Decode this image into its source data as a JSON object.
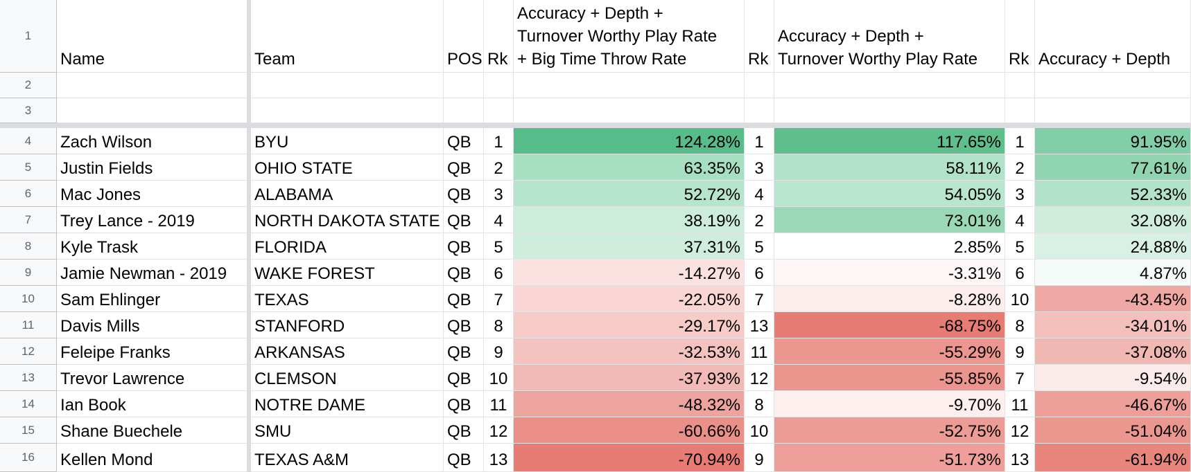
{
  "row_numbers": [
    "1",
    "2",
    "3",
    "4",
    "5",
    "6",
    "7",
    "8",
    "9",
    "10",
    "11",
    "12",
    "13",
    "14",
    "15",
    "16"
  ],
  "headers": {
    "name": "Name",
    "team": "Team",
    "pos": "POS",
    "rk1": "Rk",
    "score1": [
      "Accuracy + Depth +",
      "Turnover Worthy Play Rate",
      "+ Big Time Throw Rate"
    ],
    "rk2": "Rk",
    "score2": [
      "Accuracy + Depth +",
      "Turnover Worthy Play Rate"
    ],
    "rk3": "Rk",
    "score3": [
      "Accuracy + Depth"
    ]
  },
  "rows": [
    {
      "name": "Zach Wilson",
      "team": "BYU",
      "pos": "QB",
      "rk1": "1",
      "score1": "124.28%",
      "rk2": "1",
      "score2": "117.65%",
      "rk3": "1",
      "score3": "91.95%",
      "c1": "#57bb8a",
      "c2": "#5ebf8d",
      "c3": "#82cea8"
    },
    {
      "name": "Justin Fields",
      "team": "OHIO STATE",
      "pos": "QB",
      "rk1": "2",
      "score1": "63.35%",
      "rk2": "3",
      "score2": "58.11%",
      "rk3": "2",
      "score3": "77.61%",
      "c1": "#a7dfc3",
      "c2": "#b2e2ca",
      "c3": "#91d4b2"
    },
    {
      "name": "Mac Jones",
      "team": "ALABAMA",
      "pos": "QB",
      "rk1": "3",
      "score1": "52.72%",
      "rk2": "4",
      "score2": "54.05%",
      "rk3": "3",
      "score3": "52.33%",
      "c1": "#b6e5cd",
      "c2": "#b7e5cd",
      "c3": "#b3e2ca"
    },
    {
      "name": "Trey Lance - 2019",
      "team": "NORTH DAKOTA STATE",
      "pos": "QB",
      "rk1": "4",
      "score1": "38.19%",
      "rk2": "2",
      "score2": "73.01%",
      "rk3": "4",
      "score3": "32.08%",
      "c1": "#cdeddc",
      "c2": "#9ad9b8",
      "c3": "#d0ecdd"
    },
    {
      "name": "Kyle Trask",
      "team": "FLORIDA",
      "pos": "QB",
      "rk1": "5",
      "score1": "37.31%",
      "rk2": "5",
      "score2": "2.85%",
      "rk3": "5",
      "score3": "24.88%",
      "c1": "#cfeddd",
      "c2": "#ffffff",
      "c3": "#d9f0e4"
    },
    {
      "name": "Jamie Newman - 2019",
      "team": "WAKE FOREST",
      "pos": "QB",
      "rk1": "6",
      "score1": "-14.27%",
      "rk2": "6",
      "score2": "-3.31%",
      "rk3": "6",
      "score3": "4.87%",
      "c1": "#fbe1e0",
      "c2": "#fdf6f6",
      "c3": "#f5fbf8"
    },
    {
      "name": "Sam Ehlinger",
      "team": "TEXAS",
      "pos": "QB",
      "rk1": "7",
      "score1": "-22.05%",
      "rk2": "7",
      "score2": "-8.28%",
      "rk3": "10",
      "score3": "-43.45%",
      "c1": "#f9d6d4",
      "c2": "#fcecec",
      "c3": "#efa8a3"
    },
    {
      "name": "Davis Mills",
      "team": "STANFORD",
      "pos": "QB",
      "rk1": "8",
      "score1": "-29.17%",
      "rk2": "13",
      "score2": "-68.75%",
      "rk3": "8",
      "score3": "-34.01%",
      "c1": "#f6cbc8",
      "c2": "#e67c73",
      "c3": "#f4c0bc"
    },
    {
      "name": "Feleipe Franks",
      "team": "ARKANSAS",
      "pos": "QB",
      "rk1": "9",
      "score1": "-32.53%",
      "rk2": "11",
      "score2": "-55.29%",
      "rk3": "9",
      "score3": "-37.08%",
      "c1": "#f4c3bf",
      "c2": "#ec968f",
      "c3": "#f1b7b2"
    },
    {
      "name": "Trevor Lawrence",
      "team": "CLEMSON",
      "pos": "QB",
      "rk1": "10",
      "score1": "-37.93%",
      "rk2": "12",
      "score2": "-55.85%",
      "rk3": "7",
      "score3": "-9.54%",
      "c1": "#f2bab6",
      "c2": "#eb958e",
      "c3": "#fbeceb"
    },
    {
      "name": "Ian Book",
      "team": "NOTRE DAME",
      "pos": "QB",
      "rk1": "11",
      "score1": "-48.32%",
      "rk2": "8",
      "score2": "-9.70%",
      "rk3": "11",
      "score3": "-46.67%",
      "c1": "#eea49e",
      "c2": "#fcefee",
      "c3": "#ee9f99"
    },
    {
      "name": "Shane Buechele",
      "team": "SMU",
      "pos": "QB",
      "rk1": "12",
      "score1": "-60.66%",
      "rk2": "10",
      "score2": "-52.75%",
      "rk3": "12",
      "score3": "-51.04%",
      "c1": "#ea9089",
      "c2": "#ed9c95",
      "c3": "#ec9690"
    },
    {
      "name": "Kellen Mond",
      "team": "TEXAS A&M",
      "pos": "QB",
      "rk1": "13",
      "score1": "-70.94%",
      "rk2": "9",
      "score2": "-51.73%",
      "rk3": "13",
      "score3": "-61.94%",
      "c1": "#e67c73",
      "c2": "#ee9f99",
      "c3": "#e8867e"
    }
  ]
}
